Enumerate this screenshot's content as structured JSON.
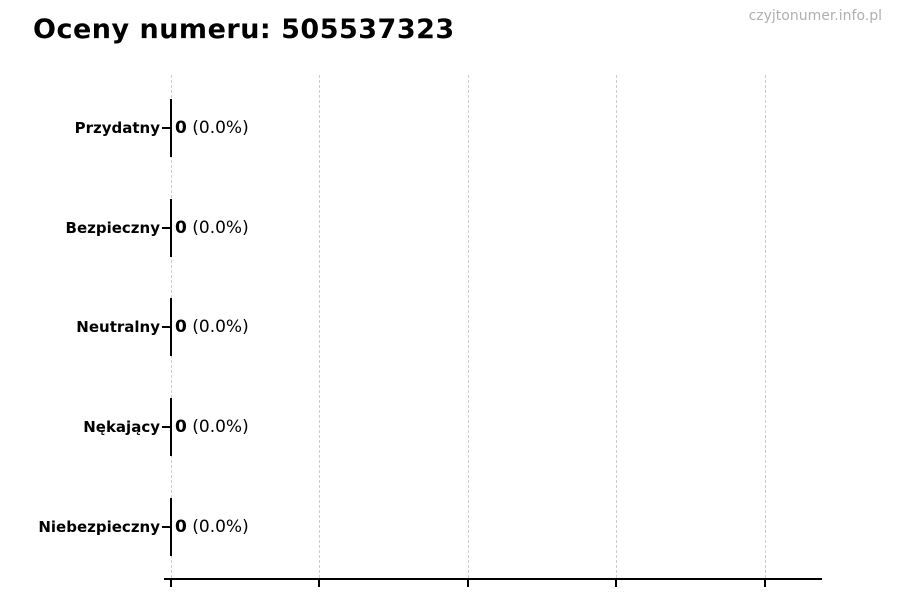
{
  "header": {
    "title": "Oceny numeru: 505537323",
    "watermark": "czyjtonumer.info.pl"
  },
  "chart_data": {
    "type": "bar",
    "orientation": "horizontal",
    "title": "Oceny numeru: 505537323",
    "categories": [
      "Przydatny",
      "Bezpieczny",
      "Neutralny",
      "Nękający",
      "Niebezpieczny"
    ],
    "values": [
      0,
      0,
      0,
      0,
      0
    ],
    "percentages": [
      0.0,
      0.0,
      0.0,
      0.0,
      0.0
    ],
    "rows": [
      {
        "label": "Przydatny",
        "count": "0",
        "percent": "(0.0%)"
      },
      {
        "label": "Bezpieczny",
        "count": "0",
        "percent": "(0.0%)"
      },
      {
        "label": "Neutralny",
        "count": "0",
        "percent": "(0.0%)"
      },
      {
        "label": "Nękający",
        "count": "0",
        "percent": "(0.0%)"
      },
      {
        "label": "Niebezpieczny",
        "count": "0",
        "percent": "(0.0%)"
      }
    ],
    "xlabel": "",
    "ylabel": "",
    "x_axis": {
      "tick_count": 5,
      "tick_labels_visible": false
    },
    "grid": {
      "vertical": true,
      "style": "dashed",
      "color": "#cccccc"
    },
    "bar_color": "#000000",
    "background_color": "#ffffff",
    "watermark_color": "#b0b0b0"
  }
}
